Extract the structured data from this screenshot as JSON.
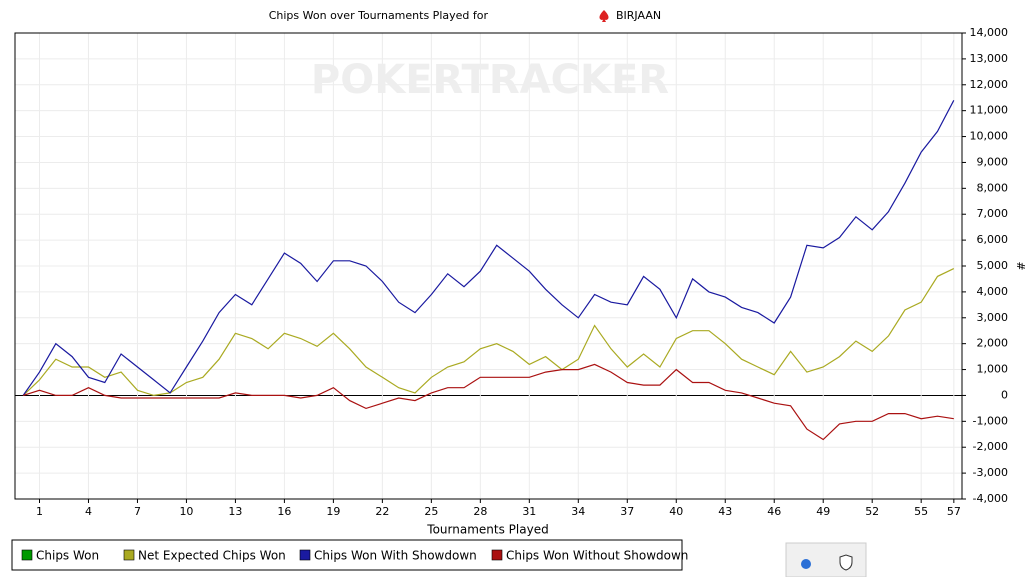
{
  "chart_data": {
    "type": "line",
    "title": "Chips Won over Tournaments Played for",
    "player": "BIRJAAN",
    "watermark": "POKERTRACKER",
    "x_label": "Tournaments Played",
    "y_label": "#",
    "x": [
      0,
      1,
      2,
      3,
      4,
      5,
      6,
      7,
      8,
      9,
      10,
      11,
      12,
      13,
      14,
      15,
      16,
      17,
      18,
      19,
      20,
      21,
      22,
      23,
      24,
      25,
      26,
      27,
      28,
      29,
      30,
      31,
      32,
      33,
      34,
      35,
      36,
      37,
      38,
      39,
      40,
      41,
      42,
      43,
      44,
      45,
      46,
      47,
      48,
      49,
      50,
      51,
      52,
      53,
      54,
      55,
      56,
      57
    ],
    "xlim": [
      -0.5,
      57.5
    ],
    "xticks": [
      1,
      4,
      7,
      10,
      13,
      16,
      19,
      22,
      25,
      28,
      31,
      34,
      37,
      40,
      43,
      46,
      49,
      52,
      55,
      57
    ],
    "ylim": [
      -4000,
      14000
    ],
    "yticks": [
      {
        "value": -4000,
        "label": "-4,000"
      },
      {
        "value": -3000,
        "label": "-3,000"
      },
      {
        "value": -2000,
        "label": "-2,000"
      },
      {
        "value": -1000,
        "label": "-1,000"
      },
      0,
      {
        "value": 1000,
        "label": "1,000"
      },
      {
        "value": 2000,
        "label": "2,000"
      },
      {
        "value": 3000,
        "label": "3,000"
      },
      {
        "value": 4000,
        "label": "4,000"
      },
      {
        "value": 5000,
        "label": "5,000"
      },
      {
        "value": 6000,
        "label": "6,000"
      },
      {
        "value": 7000,
        "label": "7,000"
      },
      {
        "value": 8000,
        "label": "8,000"
      },
      {
        "value": 9000,
        "label": "9,000"
      },
      {
        "value": 10000,
        "label": "10,000"
      },
      {
        "value": 11000,
        "label": "11,000"
      },
      {
        "value": 12000,
        "label": "12,000"
      },
      {
        "value": 13000,
        "label": "13,000"
      },
      {
        "value": 14000,
        "label": "14,000"
      }
    ],
    "grid": true,
    "series": [
      {
        "name": "Chips Won",
        "color": "#009900",
        "values": [
          null,
          null,
          null,
          null,
          null,
          null,
          null,
          null,
          null,
          null,
          null,
          null,
          null,
          null,
          null,
          null,
          null,
          null,
          null,
          null,
          null,
          null,
          null,
          null,
          null,
          null,
          null,
          null,
          null,
          null,
          null,
          null,
          null,
          null,
          null,
          null,
          null,
          null,
          null,
          null,
          null,
          null,
          null,
          null,
          null,
          null,
          null,
          null,
          null,
          null,
          null,
          null,
          null,
          null,
          null,
          null,
          null,
          null
        ]
      },
      {
        "name": "Net Expected Chips Won",
        "color": "#aaaa22",
        "values": [
          0,
          600,
          1400,
          1100,
          1100,
          700,
          900,
          200,
          0,
          100,
          500,
          700,
          1400,
          2400,
          2200,
          1800,
          2400,
          2200,
          1900,
          2400,
          1800,
          1100,
          700,
          300,
          100,
          700,
          1100,
          1300,
          1800,
          2000,
          1700,
          1200,
          1500,
          1000,
          1400,
          2700,
          1800,
          1100,
          1600,
          1100,
          2200,
          2500,
          2500,
          2000,
          1400,
          1100,
          800,
          1700,
          900,
          1100,
          1500,
          2100,
          1700,
          2300,
          3300,
          3600,
          4600,
          4900
        ]
      },
      {
        "name": "Chips Won With Showdown",
        "color": "#1a1aa0",
        "values": [
          0,
          900,
          2000,
          1500,
          700,
          500,
          1600,
          1100,
          600,
          100,
          1100,
          2100,
          3200,
          3900,
          3500,
          4500,
          5500,
          5100,
          4400,
          5200,
          5200,
          5000,
          4400,
          3600,
          3200,
          3900,
          4700,
          4200,
          4800,
          5800,
          5300,
          4800,
          4100,
          3500,
          3000,
          3900,
          3600,
          3500,
          4600,
          4100,
          3000,
          4500,
          4000,
          3800,
          3400,
          3200,
          2800,
          3800,
          5800,
          5700,
          6100,
          6900,
          6400,
          7100,
          8200,
          9400,
          10200,
          11400
        ]
      },
      {
        "name": "Chips Won Without Showdown",
        "color": "#aa1111",
        "values": [
          0,
          200,
          0,
          0,
          300,
          0,
          -100,
          -100,
          -100,
          -100,
          -100,
          -100,
          -100,
          100,
          0,
          0,
          0,
          -100,
          0,
          300,
          -200,
          -500,
          -300,
          -100,
          -200,
          100,
          300,
          300,
          700,
          700,
          700,
          700,
          900,
          1000,
          1000,
          1200,
          900,
          500,
          400,
          400,
          1000,
          500,
          500,
          200,
          100,
          -100,
          -300,
          -400,
          -1300,
          -1700,
          -1100,
          -1000,
          -1000,
          -700,
          -700,
          -900,
          -800,
          -900
        ]
      }
    ]
  }
}
